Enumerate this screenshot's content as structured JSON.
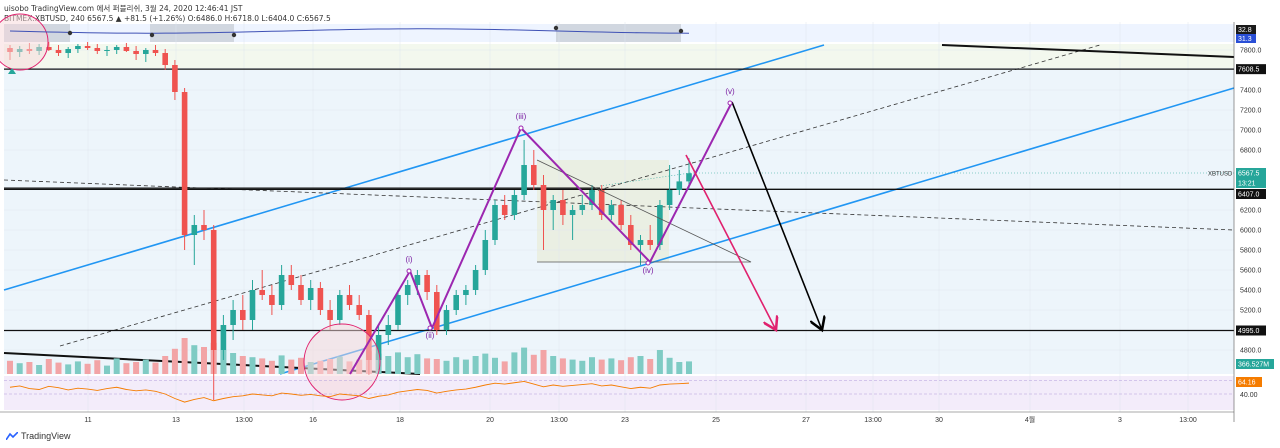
{
  "header": {
    "line1": "uisobo TradingView.com 에서 퍼블리쉬, 3월 24, 2020 12:46:41 JST",
    "line2": "BITMEX:XBTUSD, 240 6567.5 ▲ +81.5 (+1.26%) O:6486.0 H:6718.0 L:6404.0 C:6567.5"
  },
  "footer": {
    "brand": "TradingView"
  },
  "chart_data": {
    "type": "candlestick",
    "symbol": "XBTUSD",
    "y_ticks": [
      "7800.0",
      "7400.0",
      "7200.0",
      "7000.0",
      "6800.0",
      "6200.0",
      "6000.0",
      "5800.0",
      "5600.0",
      "5400.0",
      "5200.0",
      "4800.0"
    ],
    "x_ticks": [
      "11",
      "13",
      "13:00",
      "16",
      "18",
      "20",
      "13:00",
      "23",
      "25",
      "27",
      "13:00",
      "30",
      "4월",
      "3",
      "13:00"
    ],
    "level_labels": [
      {
        "text": "7608.5",
        "value": 7608.5,
        "style": "black"
      },
      {
        "text": "6567.5",
        "value": 6567.5,
        "style": "price"
      },
      {
        "text": "13:21",
        "value": 6472,
        "style": "time"
      },
      {
        "text": "6407.0",
        "value": 6407,
        "style": "black"
      },
      {
        "text": "4995.0",
        "value": 4995,
        "style": "black"
      }
    ],
    "top_indicator_labels": [
      {
        "text": "32.8",
        "bg": "#1a1a1a"
      },
      {
        "text": "31.3",
        "bg": "#2a4fd6"
      }
    ],
    "volume_label": "366.527M",
    "rsi_labels": [
      "64.16",
      "40.00"
    ],
    "wave_labels": [
      {
        "text": "(i)",
        "price": 5610
      },
      {
        "text": "(ii)",
        "price": 4930
      },
      {
        "text": "(iii)",
        "price": 7080
      },
      {
        "text": "(iv)",
        "price": 5590
      },
      {
        "text": "(v)",
        "price": 7330
      }
    ],
    "horizontal_levels": [
      7608.5,
      6407.0,
      4995.0
    ],
    "candles": [
      {
        "t": 0,
        "o": 7820,
        "h": 7850,
        "l": 7700,
        "c": 7780
      },
      {
        "t": 1,
        "o": 7780,
        "h": 7840,
        "l": 7730,
        "c": 7810
      },
      {
        "t": 2,
        "o": 7810,
        "h": 7870,
        "l": 7760,
        "c": 7790
      },
      {
        "t": 3,
        "o": 7790,
        "h": 7860,
        "l": 7750,
        "c": 7830
      },
      {
        "t": 4,
        "o": 7830,
        "h": 7880,
        "l": 7790,
        "c": 7800
      },
      {
        "t": 5,
        "o": 7800,
        "h": 7850,
        "l": 7740,
        "c": 7770
      },
      {
        "t": 6,
        "o": 7770,
        "h": 7830,
        "l": 7720,
        "c": 7810
      },
      {
        "t": 7,
        "o": 7810,
        "h": 7860,
        "l": 7770,
        "c": 7840
      },
      {
        "t": 8,
        "o": 7840,
        "h": 7880,
        "l": 7800,
        "c": 7820
      },
      {
        "t": 9,
        "o": 7820,
        "h": 7860,
        "l": 7760,
        "c": 7790
      },
      {
        "t": 10,
        "o": 7790,
        "h": 7840,
        "l": 7740,
        "c": 7800
      },
      {
        "t": 11,
        "o": 7800,
        "h": 7850,
        "l": 7760,
        "c": 7830
      },
      {
        "t": 12,
        "o": 7830,
        "h": 7870,
        "l": 7780,
        "c": 7790
      },
      {
        "t": 13,
        "o": 7790,
        "h": 7840,
        "l": 7700,
        "c": 7760
      },
      {
        "t": 14,
        "o": 7760,
        "h": 7820,
        "l": 7680,
        "c": 7800
      },
      {
        "t": 15,
        "o": 7800,
        "h": 7850,
        "l": 7740,
        "c": 7770
      },
      {
        "t": 16,
        "o": 7770,
        "h": 7810,
        "l": 7600,
        "c": 7650
      },
      {
        "t": 17,
        "o": 7650,
        "h": 7700,
        "l": 7300,
        "c": 7380
      },
      {
        "t": 18,
        "o": 7380,
        "h": 7420,
        "l": 5800,
        "c": 5950
      },
      {
        "t": 19,
        "o": 5950,
        "h": 6150,
        "l": 5650,
        "c": 6050
      },
      {
        "t": 20,
        "o": 6050,
        "h": 6200,
        "l": 5900,
        "c": 6000
      },
      {
        "t": 21,
        "o": 6000,
        "h": 6050,
        "l": 4300,
        "c": 4800
      },
      {
        "t": 22,
        "o": 4800,
        "h": 5150,
        "l": 4700,
        "c": 5050
      },
      {
        "t": 23,
        "o": 5050,
        "h": 5300,
        "l": 4900,
        "c": 5200
      },
      {
        "t": 24,
        "o": 5200,
        "h": 5350,
        "l": 5000,
        "c": 5100
      },
      {
        "t": 25,
        "o": 5100,
        "h": 5500,
        "l": 5000,
        "c": 5400
      },
      {
        "t": 26,
        "o": 5400,
        "h": 5600,
        "l": 5300,
        "c": 5350
      },
      {
        "t": 27,
        "o": 5350,
        "h": 5450,
        "l": 5150,
        "c": 5250
      },
      {
        "t": 28,
        "o": 5250,
        "h": 5650,
        "l": 5200,
        "c": 5550
      },
      {
        "t": 29,
        "o": 5550,
        "h": 5650,
        "l": 5400,
        "c": 5450
      },
      {
        "t": 30,
        "o": 5450,
        "h": 5550,
        "l": 5250,
        "c": 5300
      },
      {
        "t": 31,
        "o": 5300,
        "h": 5500,
        "l": 5200,
        "c": 5420
      },
      {
        "t": 32,
        "o": 5420,
        "h": 5480,
        "l": 5150,
        "c": 5200
      },
      {
        "t": 33,
        "o": 5200,
        "h": 5300,
        "l": 5000,
        "c": 5100
      },
      {
        "t": 34,
        "o": 5100,
        "h": 5400,
        "l": 5050,
        "c": 5350
      },
      {
        "t": 35,
        "o": 5350,
        "h": 5450,
        "l": 5200,
        "c": 5250
      },
      {
        "t": 36,
        "o": 5250,
        "h": 5350,
        "l": 5100,
        "c": 5150
      },
      {
        "t": 37,
        "o": 5150,
        "h": 5200,
        "l": 4550,
        "c": 4700
      },
      {
        "t": 38,
        "o": 4700,
        "h": 5050,
        "l": 4600,
        "c": 4950
      },
      {
        "t": 39,
        "o": 4950,
        "h": 5150,
        "l": 4850,
        "c": 5050
      },
      {
        "t": 40,
        "o": 5050,
        "h": 5400,
        "l": 5000,
        "c": 5350
      },
      {
        "t": 41,
        "o": 5350,
        "h": 5500,
        "l": 5250,
        "c": 5450
      },
      {
        "t": 42,
        "o": 5450,
        "h": 5600,
        "l": 5350,
        "c": 5550
      },
      {
        "t": 43,
        "o": 5550,
        "h": 5600,
        "l": 5300,
        "c": 5380
      },
      {
        "t": 44,
        "o": 5380,
        "h": 5450,
        "l": 4950,
        "c": 5000
      },
      {
        "t": 45,
        "o": 5000,
        "h": 5250,
        "l": 4950,
        "c": 5200
      },
      {
        "t": 46,
        "o": 5200,
        "h": 5400,
        "l": 5150,
        "c": 5350
      },
      {
        "t": 47,
        "o": 5350,
        "h": 5450,
        "l": 5250,
        "c": 5400
      },
      {
        "t": 48,
        "o": 5400,
        "h": 5650,
        "l": 5350,
        "c": 5600
      },
      {
        "t": 49,
        "o": 5600,
        "h": 6000,
        "l": 5550,
        "c": 5900
      },
      {
        "t": 50,
        "o": 5900,
        "h": 6300,
        "l": 5850,
        "c": 6250
      },
      {
        "t": 51,
        "o": 6250,
        "h": 6350,
        "l": 6100,
        "c": 6150
      },
      {
        "t": 52,
        "o": 6150,
        "h": 6400,
        "l": 6100,
        "c": 6350
      },
      {
        "t": 53,
        "o": 6350,
        "h": 6900,
        "l": 6300,
        "c": 6650
      },
      {
        "t": 54,
        "o": 6650,
        "h": 6800,
        "l": 6400,
        "c": 6450
      },
      {
        "t": 55,
        "o": 6450,
        "h": 6550,
        "l": 5800,
        "c": 6200
      },
      {
        "t": 56,
        "o": 6200,
        "h": 6350,
        "l": 6000,
        "c": 6300
      },
      {
        "t": 57,
        "o": 6300,
        "h": 6400,
        "l": 6050,
        "c": 6150
      },
      {
        "t": 58,
        "o": 6150,
        "h": 6250,
        "l": 5900,
        "c": 6200
      },
      {
        "t": 59,
        "o": 6200,
        "h": 6350,
        "l": 6150,
        "c": 6250
      },
      {
        "t": 60,
        "o": 6250,
        "h": 6450,
        "l": 6200,
        "c": 6400
      },
      {
        "t": 61,
        "o": 6400,
        "h": 6450,
        "l": 6100,
        "c": 6150
      },
      {
        "t": 62,
        "o": 6150,
        "h": 6300,
        "l": 6100,
        "c": 6250
      },
      {
        "t": 63,
        "o": 6250,
        "h": 6300,
        "l": 6000,
        "c": 6050
      },
      {
        "t": 64,
        "o": 6050,
        "h": 6150,
        "l": 5800,
        "c": 5850
      },
      {
        "t": 65,
        "o": 5850,
        "h": 5950,
        "l": 5650,
        "c": 5900
      },
      {
        "t": 66,
        "o": 5900,
        "h": 6050,
        "l": 5800,
        "c": 5850
      },
      {
        "t": 67,
        "o": 5850,
        "h": 6300,
        "l": 5800,
        "c": 6250
      },
      {
        "t": 68,
        "o": 6250,
        "h": 6650,
        "l": 6200,
        "c": 6400
      },
      {
        "t": 69,
        "o": 6400,
        "h": 6600,
        "l": 6350,
        "c": 6486
      },
      {
        "t": 70,
        "o": 6486,
        "h": 6718,
        "l": 6404,
        "c": 6567.5
      }
    ],
    "volumes": [
      22,
      18,
      20,
      15,
      25,
      19,
      16,
      21,
      17,
      23,
      14,
      26,
      18,
      20,
      24,
      19,
      30,
      42,
      60,
      48,
      45,
      52,
      40,
      35,
      30,
      28,
      26,
      22,
      31,
      24,
      27,
      20,
      22,
      25,
      29,
      21,
      24,
      38,
      34,
      30,
      36,
      28,
      33,
      26,
      25,
      22,
      28,
      24,
      30,
      34,
      27,
      21,
      36,
      44,
      32,
      40,
      30,
      26,
      24,
      22,
      28,
      24,
      26,
      23,
      28,
      30,
      25,
      40,
      27,
      20,
      21
    ],
    "rsi": [
      55,
      58,
      52,
      50,
      57,
      54,
      49,
      53,
      51,
      48,
      52,
      55,
      50,
      47,
      49,
      46,
      40,
      30,
      22,
      28,
      32,
      25,
      30,
      34,
      36,
      40,
      38,
      36,
      42,
      40,
      37,
      39,
      36,
      34,
      40,
      38,
      36,
      30,
      35,
      38,
      44,
      47,
      50,
      48,
      42,
      46,
      49,
      51,
      55,
      60,
      64,
      62,
      65,
      68,
      62,
      56,
      60,
      57,
      59,
      61,
      63,
      58,
      60,
      56,
      52,
      55,
      53,
      60,
      62,
      63,
      64.16
    ]
  }
}
